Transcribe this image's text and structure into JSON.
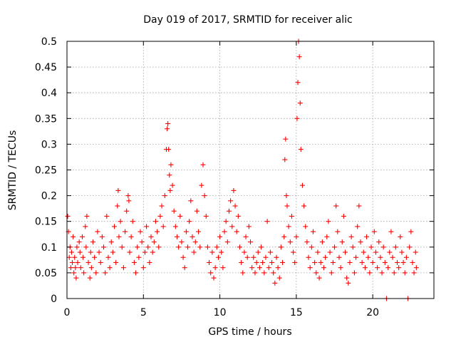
{
  "chart_data": {
    "type": "scatter",
    "title": "Day 019 of 2017, SRMTID for receiver alic",
    "xlabel": "GPS time / hours",
    "ylabel": "SRMTID / TECUs",
    "xlim": [
      0,
      24
    ],
    "ylim": [
      0,
      0.5
    ],
    "xticks": [
      0,
      5,
      10,
      15,
      20
    ],
    "yticks": [
      0,
      0.05,
      0.1,
      0.15,
      0.2,
      0.25,
      0.3,
      0.35,
      0.4,
      0.45,
      0.5
    ],
    "xtick_labels": [
      "0",
      "5",
      "10",
      "15",
      "20"
    ],
    "ytick_labels": [
      "0",
      "0.05",
      "0.1",
      "0.15",
      "0.2",
      "0.25",
      "0.3",
      "0.35",
      "0.4",
      "0.45",
      "0.5"
    ],
    "grid": true,
    "marker": "+",
    "color": "#ff0000",
    "series": [
      {
        "values": [
          [
            0.05,
            0.16
          ],
          [
            0.1,
            0.13
          ],
          [
            0.15,
            0.08
          ],
          [
            0.2,
            0.1
          ],
          [
            0.25,
            0.06
          ],
          [
            0.3,
            0.09
          ],
          [
            0.35,
            0.07
          ],
          [
            0.4,
            0.12
          ],
          [
            0.45,
            0.05
          ],
          [
            0.5,
            0.08
          ],
          [
            0.55,
            0.06
          ],
          [
            0.6,
            0.04
          ],
          [
            0.65,
            0.1
          ],
          [
            0.7,
            0.07
          ],
          [
            0.8,
            0.11
          ],
          [
            0.85,
            0.09
          ],
          [
            0.9,
            0.06
          ],
          [
            1.0,
            0.12
          ],
          [
            1.05,
            0.08
          ],
          [
            1.1,
            0.05
          ],
          [
            1.2,
            0.14
          ],
          [
            1.25,
            0.1
          ],
          [
            1.3,
            0.16
          ],
          [
            1.4,
            0.07
          ],
          [
            1.5,
            0.04
          ],
          [
            1.55,
            0.09
          ],
          [
            1.6,
            0.06
          ],
          [
            1.7,
            0.11
          ],
          [
            1.8,
            0.08
          ],
          [
            1.9,
            0.05
          ],
          [
            2.0,
            0.13
          ],
          [
            2.1,
            0.09
          ],
          [
            2.2,
            0.07
          ],
          [
            2.3,
            0.12
          ],
          [
            2.4,
            0.1
          ],
          [
            2.5,
            0.05
          ],
          [
            2.6,
            0.16
          ],
          [
            2.7,
            0.08
          ],
          [
            2.8,
            0.06
          ],
          [
            2.9,
            0.11
          ],
          [
            3.0,
            0.09
          ],
          [
            3.1,
            0.14
          ],
          [
            3.2,
            0.07
          ],
          [
            3.3,
            0.18
          ],
          [
            3.35,
            0.21
          ],
          [
            3.4,
            0.12
          ],
          [
            3.5,
            0.15
          ],
          [
            3.6,
            0.1
          ],
          [
            3.7,
            0.06
          ],
          [
            3.8,
            0.13
          ],
          [
            3.9,
            0.17
          ],
          [
            4.0,
            0.2
          ],
          [
            4.05,
            0.19
          ],
          [
            4.1,
            0.09
          ],
          [
            4.2,
            0.12
          ],
          [
            4.3,
            0.15
          ],
          [
            4.4,
            0.07
          ],
          [
            4.5,
            0.05
          ],
          [
            4.6,
            0.1
          ],
          [
            4.7,
            0.08
          ],
          [
            4.8,
            0.13
          ],
          [
            4.9,
            0.11
          ],
          [
            5.0,
            0.06
          ],
          [
            5.1,
            0.09
          ],
          [
            5.2,
            0.14
          ],
          [
            5.3,
            0.1
          ],
          [
            5.4,
            0.07
          ],
          [
            5.5,
            0.12
          ],
          [
            5.6,
            0.09
          ],
          [
            5.7,
            0.11
          ],
          [
            5.8,
            0.15
          ],
          [
            5.9,
            0.13
          ],
          [
            6.0,
            0.1
          ],
          [
            6.1,
            0.16
          ],
          [
            6.2,
            0.18
          ],
          [
            6.3,
            0.14
          ],
          [
            6.4,
            0.2
          ],
          [
            6.5,
            0.29
          ],
          [
            6.55,
            0.33
          ],
          [
            6.6,
            0.34
          ],
          [
            6.65,
            0.29
          ],
          [
            6.7,
            0.24
          ],
          [
            6.75,
            0.21
          ],
          [
            6.8,
            0.26
          ],
          [
            6.9,
            0.22
          ],
          [
            7.0,
            0.17
          ],
          [
            7.1,
            0.14
          ],
          [
            7.2,
            0.12
          ],
          [
            7.3,
            0.1
          ],
          [
            7.4,
            0.16
          ],
          [
            7.5,
            0.11
          ],
          [
            7.6,
            0.08
          ],
          [
            7.7,
            0.06
          ],
          [
            7.8,
            0.13
          ],
          [
            7.9,
            0.1
          ],
          [
            8.0,
            0.15
          ],
          [
            8.1,
            0.19
          ],
          [
            8.2,
            0.12
          ],
          [
            8.3,
            0.09
          ],
          [
            8.4,
            0.11
          ],
          [
            8.5,
            0.17
          ],
          [
            8.6,
            0.13
          ],
          [
            8.7,
            0.1
          ],
          [
            8.8,
            0.22
          ],
          [
            8.9,
            0.26
          ],
          [
            9.0,
            0.2
          ],
          [
            9.1,
            0.16
          ],
          [
            9.2,
            0.1
          ],
          [
            9.3,
            0.07
          ],
          [
            9.4,
            0.05
          ],
          [
            9.5,
            0.09
          ],
          [
            9.6,
            0.04
          ],
          [
            9.7,
            0.06
          ],
          [
            9.8,
            0.1
          ],
          [
            9.9,
            0.08
          ],
          [
            10.0,
            0.12
          ],
          [
            10.1,
            0.09
          ],
          [
            10.2,
            0.06
          ],
          [
            10.3,
            0.13
          ],
          [
            10.4,
            0.15
          ],
          [
            10.5,
            0.11
          ],
          [
            10.6,
            0.17
          ],
          [
            10.7,
            0.19
          ],
          [
            10.8,
            0.14
          ],
          [
            10.9,
            0.21
          ],
          [
            11.0,
            0.18
          ],
          [
            11.1,
            0.13
          ],
          [
            11.2,
            0.16
          ],
          [
            11.3,
            0.1
          ],
          [
            11.4,
            0.07
          ],
          [
            11.5,
            0.05
          ],
          [
            11.6,
            0.09
          ],
          [
            11.7,
            0.12
          ],
          [
            11.8,
            0.08
          ],
          [
            11.9,
            0.14
          ],
          [
            12.0,
            0.11
          ],
          [
            12.1,
            0.06
          ],
          [
            12.2,
            0.08
          ],
          [
            12.3,
            0.05
          ],
          [
            12.4,
            0.07
          ],
          [
            12.5,
            0.09
          ],
          [
            12.6,
            0.06
          ],
          [
            12.7,
            0.1
          ],
          [
            12.8,
            0.07
          ],
          [
            12.9,
            0.05
          ],
          [
            13.0,
            0.08
          ],
          [
            13.1,
            0.15
          ],
          [
            13.2,
            0.06
          ],
          [
            13.3,
            0.09
          ],
          [
            13.4,
            0.07
          ],
          [
            13.5,
            0.05
          ],
          [
            13.6,
            0.03
          ],
          [
            13.7,
            0.08
          ],
          [
            13.8,
            0.06
          ],
          [
            13.9,
            0.04
          ],
          [
            14.0,
            0.1
          ],
          [
            14.1,
            0.07
          ],
          [
            14.2,
            0.12
          ],
          [
            14.25,
            0.27
          ],
          [
            14.3,
            0.31
          ],
          [
            14.35,
            0.2
          ],
          [
            14.4,
            0.18
          ],
          [
            14.5,
            0.14
          ],
          [
            14.6,
            0.11
          ],
          [
            14.7,
            0.16
          ],
          [
            14.8,
            0.09
          ],
          [
            14.9,
            0.07
          ],
          [
            15.0,
            0.12
          ],
          [
            15.05,
            0.35
          ],
          [
            15.1,
            0.42
          ],
          [
            15.15,
            0.5
          ],
          [
            15.2,
            0.47
          ],
          [
            15.25,
            0.38
          ],
          [
            15.3,
            0.29
          ],
          [
            15.4,
            0.22
          ],
          [
            15.5,
            0.18
          ],
          [
            15.6,
            0.14
          ],
          [
            15.7,
            0.11
          ],
          [
            15.8,
            0.08
          ],
          [
            15.9,
            0.06
          ],
          [
            16.0,
            0.1
          ],
          [
            16.1,
            0.13
          ],
          [
            16.2,
            0.07
          ],
          [
            16.3,
            0.05
          ],
          [
            16.4,
            0.09
          ],
          [
            16.5,
            0.04
          ],
          [
            16.6,
            0.07
          ],
          [
            16.7,
            0.11
          ],
          [
            16.8,
            0.06
          ],
          [
            16.9,
            0.08
          ],
          [
            17.0,
            0.12
          ],
          [
            17.1,
            0.15
          ],
          [
            17.2,
            0.09
          ],
          [
            17.3,
            0.05
          ],
          [
            17.4,
            0.07
          ],
          [
            17.5,
            0.1
          ],
          [
            17.6,
            0.18
          ],
          [
            17.7,
            0.13
          ],
          [
            17.8,
            0.08
          ],
          [
            17.9,
            0.06
          ],
          [
            18.0,
            0.11
          ],
          [
            18.1,
            0.16
          ],
          [
            18.2,
            0.09
          ],
          [
            18.3,
            0.04
          ],
          [
            18.4,
            0.03
          ],
          [
            18.5,
            0.07
          ],
          [
            18.6,
            0.12
          ],
          [
            18.7,
            0.1
          ],
          [
            18.8,
            0.05
          ],
          [
            18.9,
            0.08
          ],
          [
            19.0,
            0.14
          ],
          [
            19.1,
            0.18
          ],
          [
            19.2,
            0.11
          ],
          [
            19.3,
            0.07
          ],
          [
            19.4,
            0.09
          ],
          [
            19.5,
            0.06
          ],
          [
            19.6,
            0.12
          ],
          [
            19.7,
            0.08
          ],
          [
            19.8,
            0.05
          ],
          [
            19.9,
            0.1
          ],
          [
            20.0,
            0.07
          ],
          [
            20.1,
            0.13
          ],
          [
            20.2,
            0.09
          ],
          [
            20.3,
            0.06
          ],
          [
            20.4,
            0.11
          ],
          [
            20.5,
            0.08
          ],
          [
            20.6,
            0.05
          ],
          [
            20.7,
            0.1
          ],
          [
            20.8,
            0.07
          ],
          [
            20.9,
            0.0
          ],
          [
            21.0,
            0.06
          ],
          [
            21.1,
            0.09
          ],
          [
            21.2,
            0.13
          ],
          [
            21.3,
            0.08
          ],
          [
            21.4,
            0.05
          ],
          [
            21.5,
            0.1
          ],
          [
            21.6,
            0.07
          ],
          [
            21.7,
            0.06
          ],
          [
            21.8,
            0.12
          ],
          [
            21.9,
            0.09
          ],
          [
            22.0,
            0.07
          ],
          [
            22.1,
            0.05
          ],
          [
            22.2,
            0.08
          ],
          [
            22.3,
            0.0
          ],
          [
            22.4,
            0.1
          ],
          [
            22.5,
            0.13
          ],
          [
            22.6,
            0.07
          ],
          [
            22.7,
            0.05
          ],
          [
            22.8,
            0.09
          ],
          [
            22.85,
            0.06
          ]
        ]
      }
    ]
  }
}
